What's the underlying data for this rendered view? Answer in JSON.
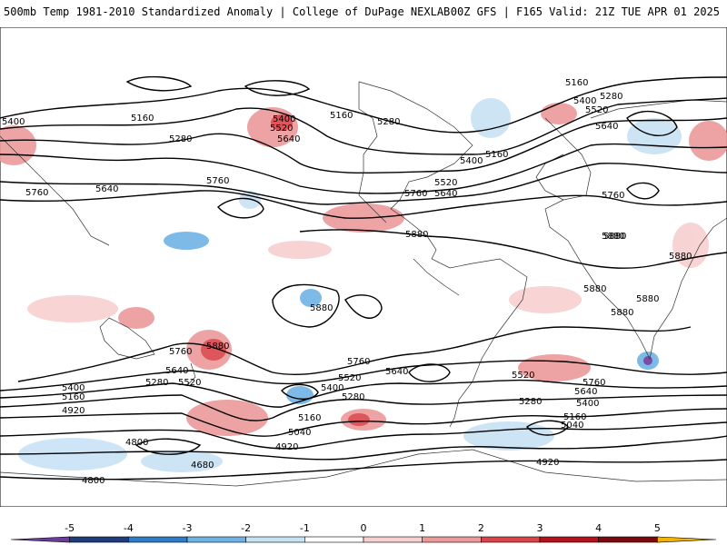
{
  "header": {
    "left": "500mb Temp 1981-2010 Standardized Anomaly | College of DuPage NEXLAB",
    "right": "00Z GFS | F165 Valid: 21Z TUE APR 01 2025"
  },
  "contour_labels": [
    "5160",
    "5280",
    "5400",
    "5520",
    "5640",
    "5760",
    "5880",
    "5400",
    "5160",
    "5280",
    "5760",
    "5640",
    "5400",
    "5520",
    "5640",
    "5160",
    "5280",
    "5400",
    "5160",
    "5520",
    "5640",
    "5760",
    "5880",
    "5760",
    "5880",
    "5880",
    "5880",
    "5880",
    "5880",
    "5880",
    "5760",
    "5880",
    "5640",
    "5520",
    "5400",
    "5280",
    "5160",
    "4920",
    "4800",
    "4680",
    "4800",
    "5520",
    "5400",
    "5280",
    "5160",
    "5040",
    "4920",
    "5760",
    "5640",
    "5520",
    "5640",
    "5760",
    "5280",
    "5400",
    "5160",
    "5040",
    "4920"
  ],
  "colorbar": {
    "ticks": [
      "-5",
      "-4",
      "-3",
      "-2",
      "-1",
      "0",
      "1",
      "2",
      "3",
      "4",
      "5"
    ],
    "colors": [
      "#6a3d9a",
      "#1f3d7a",
      "#2f7cc7",
      "#6fb3e6",
      "#c8e2f5",
      "#ffffff",
      "#f7cfcf",
      "#ec9a9a",
      "#d9444a",
      "#b3131a",
      "#7a0a0e",
      "#f2b400"
    ]
  }
}
